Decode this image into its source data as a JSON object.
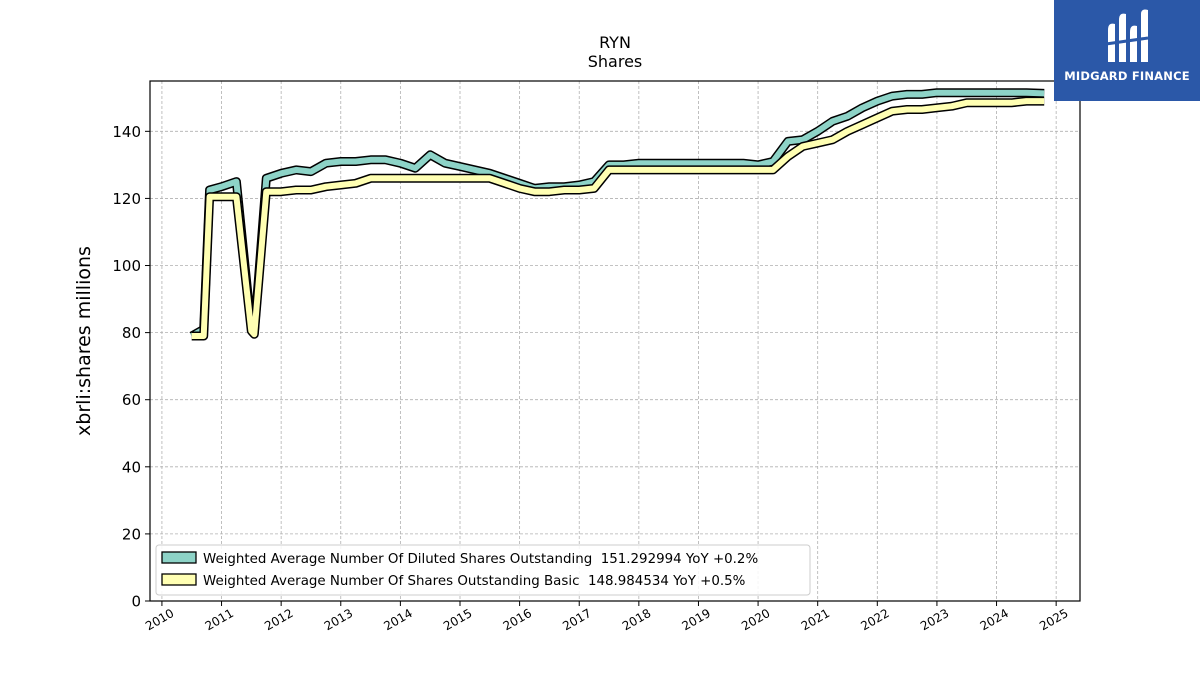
{
  "brand": {
    "name": "MIDGARD FINANCE",
    "bg_color": "#2b58a8"
  },
  "chart_data": {
    "type": "line",
    "title": "RYN",
    "subtitle": "Shares",
    "xlabel": "",
    "ylabel": "xbrli:shares millions",
    "xlim": [
      2009.8,
      2025.4
    ],
    "ylim": [
      0,
      155
    ],
    "x_ticks": [
      "2010",
      "2011",
      "2012",
      "2013",
      "2014",
      "2015",
      "2016",
      "2017",
      "2018",
      "2019",
      "2020",
      "2021",
      "2022",
      "2023",
      "2024",
      "2025"
    ],
    "y_ticks": [
      0,
      20,
      40,
      60,
      80,
      100,
      120,
      140
    ],
    "grid": true,
    "legend_position": "lower-left",
    "series": [
      {
        "name": "Weighted Average Number Of Diluted Shares Outstanding",
        "legend_label": "Weighted Average Number Of Diluted Shares Outstanding  151.292994 YoY +0.2%",
        "color": "#8dd3c7",
        "x": [
          2010.5,
          2010.7,
          2010.8,
          2011.0,
          2011.25,
          2011.5,
          2011.55,
          2011.75,
          2012.0,
          2012.25,
          2012.5,
          2012.75,
          2013.0,
          2013.25,
          2013.5,
          2013.75,
          2014.0,
          2014.25,
          2014.5,
          2014.75,
          2015.0,
          2015.5,
          2015.75,
          2016.0,
          2016.25,
          2016.5,
          2016.75,
          2017.0,
          2017.25,
          2017.5,
          2017.75,
          2018.0,
          2018.5,
          2019.0,
          2019.5,
          2019.75,
          2020.0,
          2020.25,
          2020.5,
          2020.75,
          2021.0,
          2021.25,
          2021.5,
          2021.75,
          2022.0,
          2022.25,
          2022.5,
          2022.75,
          2023.0,
          2023.25,
          2023.5,
          2023.75,
          2024.0,
          2024.25,
          2024.5,
          2024.8
        ],
        "y": [
          79.0,
          81.0,
          122.5,
          123.5,
          125.0,
          81.5,
          80.0,
          126.0,
          127.5,
          128.5,
          128.0,
          130.5,
          131.0,
          131.0,
          131.5,
          131.5,
          130.5,
          129.0,
          133.0,
          130.5,
          129.5,
          127.5,
          126.0,
          124.5,
          123.0,
          123.5,
          123.5,
          124.0,
          125.0,
          130.0,
          130.0,
          130.5,
          130.5,
          130.5,
          130.5,
          130.5,
          130.0,
          131.0,
          137.0,
          137.5,
          140.0,
          143.0,
          144.5,
          147.0,
          149.0,
          150.5,
          151.0,
          151.0,
          151.5,
          151.5,
          151.5,
          151.5,
          151.5,
          151.5,
          151.5,
          151.3
        ]
      },
      {
        "name": "Weighted Average Number Of Shares Outstanding Basic",
        "legend_label": "Weighted Average Number Of Shares Outstanding Basic  148.984534 YoY +0.5%",
        "color": "#ffffb3",
        "x": [
          2010.5,
          2010.7,
          2010.8,
          2011.0,
          2011.25,
          2011.5,
          2011.55,
          2011.75,
          2012.0,
          2012.25,
          2012.5,
          2012.75,
          2013.0,
          2013.25,
          2013.5,
          2013.75,
          2014.0,
          2014.25,
          2014.5,
          2014.75,
          2015.0,
          2015.5,
          2015.75,
          2016.0,
          2016.25,
          2016.5,
          2016.75,
          2017.0,
          2017.25,
          2017.5,
          2017.75,
          2018.0,
          2018.5,
          2019.0,
          2019.5,
          2019.75,
          2020.0,
          2020.25,
          2020.5,
          2020.75,
          2021.0,
          2021.25,
          2021.5,
          2021.75,
          2022.0,
          2022.25,
          2022.5,
          2022.75,
          2023.0,
          2023.25,
          2023.5,
          2023.75,
          2024.0,
          2024.25,
          2024.5,
          2024.8
        ],
        "y": [
          79.0,
          79.0,
          120.5,
          120.5,
          120.5,
          80.5,
          79.5,
          122.0,
          122.0,
          122.5,
          122.5,
          123.5,
          124.0,
          124.5,
          126.0,
          126.0,
          126.0,
          126.0,
          126.0,
          126.0,
          126.0,
          126.0,
          124.5,
          123.0,
          122.0,
          122.0,
          122.5,
          122.5,
          123.0,
          128.5,
          128.5,
          128.5,
          128.5,
          128.5,
          128.5,
          128.5,
          128.5,
          128.5,
          132.5,
          135.5,
          136.5,
          137.5,
          140.0,
          142.0,
          144.0,
          146.0,
          146.5,
          146.5,
          147.0,
          147.5,
          148.5,
          148.5,
          148.5,
          148.5,
          149.0,
          149.0
        ]
      }
    ]
  }
}
